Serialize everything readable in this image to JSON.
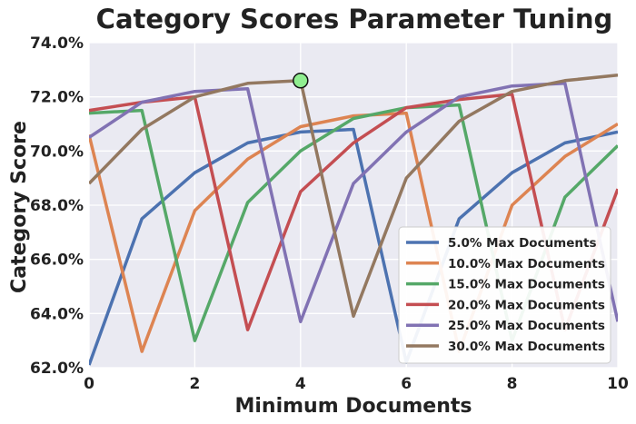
{
  "chart_data": {
    "type": "line",
    "title": "Category Scores Parameter Tuning",
    "xlabel": "Minimum Documents",
    "ylabel": "Category Score",
    "xlim": [
      0,
      10
    ],
    "ylim": [
      62.0,
      74.0
    ],
    "x_ticks": [
      0,
      2,
      4,
      6,
      8,
      10
    ],
    "y_ticks": [
      62.0,
      64.0,
      66.0,
      68.0,
      70.0,
      72.0,
      74.0
    ],
    "y_tick_labels": [
      "62.0%",
      "64.0%",
      "66.0%",
      "68.0%",
      "70.0%",
      "72.0%",
      "74.0%"
    ],
    "grid": true,
    "background": "#EAEAF2",
    "legend_position": "lower-right",
    "series": [
      {
        "name": "5.0% Max Documents",
        "color": "#4C72B0",
        "x": [
          0,
          1,
          2,
          3,
          4,
          5,
          6,
          7,
          8,
          9,
          10
        ],
        "y": [
          62.1,
          67.5,
          69.2,
          70.3,
          70.7,
          70.8,
          62.2,
          67.5,
          69.2,
          70.3,
          70.7
        ]
      },
      {
        "name": "10.0% Max Documents",
        "color": "#DD8452",
        "x": [
          0,
          1,
          2,
          3,
          4,
          5,
          6,
          7,
          8,
          9,
          10
        ],
        "y": [
          70.6,
          62.6,
          67.8,
          69.7,
          70.9,
          71.3,
          71.4,
          62.6,
          68.0,
          69.8,
          71.0
        ]
      },
      {
        "name": "15.0% Max Documents",
        "color": "#55A868",
        "x": [
          0,
          1,
          2,
          3,
          4,
          5,
          6,
          7,
          8,
          9,
          10
        ],
        "y": [
          71.4,
          71.5,
          63.0,
          68.1,
          70.0,
          71.2,
          71.6,
          71.7,
          63.0,
          68.3,
          70.2
        ]
      },
      {
        "name": "20.0% Max Documents",
        "color": "#C44E52",
        "x": [
          0,
          1,
          2,
          3,
          4,
          5,
          6,
          7,
          8,
          9,
          10
        ],
        "y": [
          71.5,
          71.8,
          72.0,
          63.4,
          68.5,
          70.3,
          71.6,
          71.9,
          72.1,
          63.4,
          68.6
        ]
      },
      {
        "name": "25.0% Max Documents",
        "color": "#8172B3",
        "x": [
          0,
          1,
          2,
          3,
          4,
          5,
          6,
          7,
          8,
          9,
          10
        ],
        "y": [
          70.5,
          71.8,
          72.2,
          72.3,
          63.7,
          68.8,
          70.7,
          72.0,
          72.4,
          72.5,
          63.7
        ]
      },
      {
        "name": "30.0% Max Documents",
        "color": "#937860",
        "x": [
          0,
          1,
          2,
          3,
          4,
          5,
          6,
          7,
          8,
          9,
          10
        ],
        "y": [
          68.8,
          70.8,
          72.0,
          72.5,
          72.6,
          63.9,
          69.0,
          71.1,
          72.2,
          72.6,
          72.8
        ]
      }
    ],
    "highlight_point": {
      "x": 4,
      "y": 72.6,
      "color": "#90EE90"
    }
  }
}
